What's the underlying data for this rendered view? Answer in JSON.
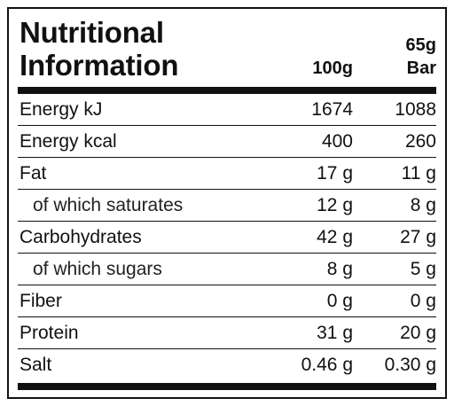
{
  "title_line1": "Nutritional",
  "title_line2": "Information",
  "columns": {
    "per100": "100g",
    "per_bar_line1": "65g",
    "per_bar_line2": "Bar"
  },
  "rows": [
    {
      "name": "Energy kJ",
      "per100": "1674",
      "perbar": "1088"
    },
    {
      "name": "Energy kcal",
      "per100": "400",
      "perbar": "260"
    },
    {
      "name": "Fat",
      "per100": "17 g",
      "perbar": "11 g"
    },
    {
      "name": "of which saturates",
      "per100": "12 g",
      "perbar": "8 g"
    },
    {
      "name": "Carbohydrates",
      "per100": "42 g",
      "perbar": "27 g"
    },
    {
      "name": "of which sugars",
      "per100": "8 g",
      "perbar": "5 g"
    },
    {
      "name": "Fiber",
      "per100": "0 g",
      "perbar": "0 g"
    },
    {
      "name": "Protein",
      "per100": "31 g",
      "perbar": "20 g"
    },
    {
      "name": "Salt",
      "per100": "0.46 g",
      "perbar": "0.30 g"
    }
  ],
  "colors": {
    "ink": "#111111",
    "background": "#ffffff"
  }
}
